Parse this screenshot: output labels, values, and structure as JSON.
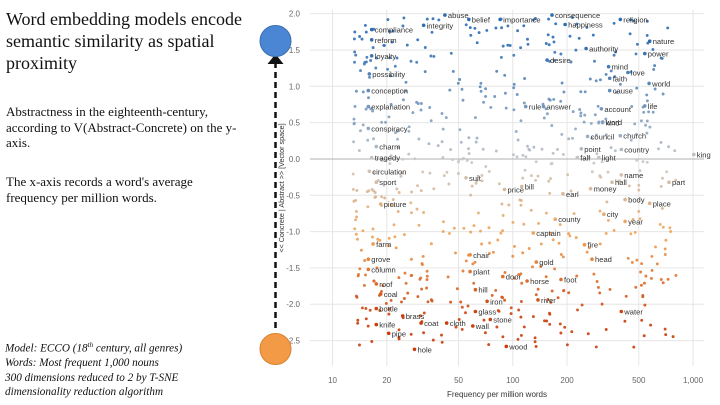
{
  "slide": {
    "title": "Word embedding models encode semantic similarity as spatial proximity",
    "description": [
      "Abstractness in the eighteenth-century, according to V(Abstract-Concrete) on the y-axis.",
      "The x-axis records a word's average frequency per million words."
    ],
    "notes": {
      "model_prefix": "Model: ECCO (18",
      "model_sup": "th",
      "model_suffix": " century, all genres)",
      "words": "Words: Most frequent 1,000 nouns",
      "dims": "300 dimensions reduced to 2 by T-SNE",
      "algo": "dimensionality reduction algorithm"
    }
  },
  "arrow": {
    "top_color": "#4a86d4",
    "bottom_color": "#f39a46",
    "line_color": "#111111"
  },
  "chart_data": {
    "type": "scatter",
    "xlabel": "Frequency per million words",
    "ylabel": "<< Concrete | Abstract >> [Vector space]",
    "xscale": "log",
    "xlim": [
      7.5,
      1150
    ],
    "ylim": [
      -2.85,
      2.05
    ],
    "xticks": [
      10,
      20,
      50,
      100,
      200,
      500,
      1000
    ],
    "xtick_labels": [
      "10",
      "20",
      "50",
      "100",
      "200",
      "500",
      "1,000"
    ],
    "yticks": [
      2.0,
      1.5,
      1.0,
      0.5,
      0.0,
      -0.5,
      -1.0,
      -1.5,
      -2.0,
      -2.5
    ],
    "ytick_labels": [
      "2.0",
      "1.5",
      "1.0",
      "0.5",
      "0.0",
      "-0.5",
      "-1.0",
      "-1.5",
      "-2.0",
      "-2.5"
    ],
    "grid": true,
    "color_scale": {
      "abstract": "#2f6db3",
      "neutral": "#c8c8c8",
      "concrete": "#c93d0a"
    },
    "labeled_points": [
      {
        "word": "abuse",
        "x": 42,
        "y": 1.98
      },
      {
        "word": "belief",
        "x": 57,
        "y": 1.92
      },
      {
        "word": "importance",
        "x": 85,
        "y": 1.92
      },
      {
        "word": "consequence",
        "x": 165,
        "y": 1.98
      },
      {
        "word": "religion",
        "x": 395,
        "y": 1.92
      },
      {
        "word": "happiness",
        "x": 195,
        "y": 1.85
      },
      {
        "word": "integrity",
        "x": 32,
        "y": 1.84
      },
      {
        "word": "compliance",
        "x": 16.5,
        "y": 1.78
      },
      {
        "word": "reform",
        "x": 16.5,
        "y": 1.64
      },
      {
        "word": "nature",
        "x": 575,
        "y": 1.62
      },
      {
        "word": "authority",
        "x": 255,
        "y": 1.52
      },
      {
        "word": "power",
        "x": 540,
        "y": 1.45
      },
      {
        "word": "loyalty",
        "x": 16.5,
        "y": 1.42
      },
      {
        "word": "desire",
        "x": 155,
        "y": 1.36
      },
      {
        "word": "mind",
        "x": 340,
        "y": 1.27
      },
      {
        "word": "love",
        "x": 435,
        "y": 1.19
      },
      {
        "word": "possibility",
        "x": 16.0,
        "y": 1.17
      },
      {
        "word": "faith",
        "x": 345,
        "y": 1.11
      },
      {
        "word": "world",
        "x": 570,
        "y": 1.04
      },
      {
        "word": "conception",
        "x": 15.8,
        "y": 0.94
      },
      {
        "word": "cause",
        "x": 345,
        "y": 0.94
      },
      {
        "word": "explanation",
        "x": 15.8,
        "y": 0.72
      },
      {
        "word": "life",
        "x": 540,
        "y": 0.73
      },
      {
        "word": "rule",
        "x": 118,
        "y": 0.72
      },
      {
        "word": "answer",
        "x": 148,
        "y": 0.72
      },
      {
        "word": "account",
        "x": 310,
        "y": 0.69
      },
      {
        "word": "conspiracy",
        "x": 15.8,
        "y": 0.42
      },
      {
        "word": "kind",
        "x": 315,
        "y": 0.5
      },
      {
        "word": "word",
        "x": 315,
        "y": 0.51
      },
      {
        "word": "council",
        "x": 260,
        "y": 0.31
      },
      {
        "word": "church",
        "x": 395,
        "y": 0.32
      },
      {
        "word": "charm",
        "x": 17.5,
        "y": 0.17
      },
      {
        "word": "point",
        "x": 240,
        "y": 0.14
      },
      {
        "word": "country",
        "x": 400,
        "y": 0.13
      },
      {
        "word": "tragedy",
        "x": 16.5,
        "y": 0.02
      },
      {
        "word": "fall",
        "x": 228,
        "y": 0.02
      },
      {
        "word": "light",
        "x": 300,
        "y": 0.02
      },
      {
        "word": "king",
        "x": 1010,
        "y": 0.06
      },
      {
        "word": "circulation",
        "x": 16.0,
        "y": -0.17
      },
      {
        "word": "name",
        "x": 400,
        "y": -0.22
      },
      {
        "word": "sport",
        "x": 17.5,
        "y": -0.32
      },
      {
        "word": "suit",
        "x": 55,
        "y": -0.26
      },
      {
        "word": "hall",
        "x": 355,
        "y": -0.32
      },
      {
        "word": "part",
        "x": 735,
        "y": -0.32
      },
      {
        "word": "money",
        "x": 270,
        "y": -0.41
      },
      {
        "word": "bill",
        "x": 112,
        "y": -0.38
      },
      {
        "word": "price",
        "x": 90,
        "y": -0.42
      },
      {
        "word": "earl",
        "x": 190,
        "y": -0.48
      },
      {
        "word": "body",
        "x": 420,
        "y": -0.56
      },
      {
        "word": "picture",
        "x": 18.5,
        "y": -0.62
      },
      {
        "word": "place",
        "x": 575,
        "y": -0.61
      },
      {
        "word": "city",
        "x": 320,
        "y": -0.76
      },
      {
        "word": "year",
        "x": 420,
        "y": -0.86
      },
      {
        "word": "county",
        "x": 172,
        "y": -0.83
      },
      {
        "word": "captain",
        "x": 130,
        "y": -1.02
      },
      {
        "word": "farm",
        "x": 16.8,
        "y": -1.17
      },
      {
        "word": "fire",
        "x": 250,
        "y": -1.18
      },
      {
        "word": "chair",
        "x": 58,
        "y": -1.32
      },
      {
        "word": "grove",
        "x": 15.8,
        "y": -1.38
      },
      {
        "word": "head",
        "x": 275,
        "y": -1.38
      },
      {
        "word": "gold",
        "x": 135,
        "y": -1.42
      },
      {
        "word": "column",
        "x": 15.8,
        "y": -1.52
      },
      {
        "word": "plant",
        "x": 58,
        "y": -1.55
      },
      {
        "word": "door",
        "x": 88,
        "y": -1.62
      },
      {
        "word": "horse",
        "x": 120,
        "y": -1.68
      },
      {
        "word": "foot",
        "x": 185,
        "y": -1.66
      },
      {
        "word": "roof",
        "x": 17.5,
        "y": -1.72
      },
      {
        "word": "hill",
        "x": 62,
        "y": -1.8
      },
      {
        "word": "coal",
        "x": 18.5,
        "y": -1.86
      },
      {
        "word": "river",
        "x": 138,
        "y": -1.94
      },
      {
        "word": "iron",
        "x": 72,
        "y": -1.96
      },
      {
        "word": "bottle",
        "x": 17.5,
        "y": -2.06
      },
      {
        "word": "water",
        "x": 400,
        "y": -2.1
      },
      {
        "word": "glass",
        "x": 62,
        "y": -2.1
      },
      {
        "word": "brass",
        "x": 24.5,
        "y": -2.16
      },
      {
        "word": "stone",
        "x": 75,
        "y": -2.21
      },
      {
        "word": "knife",
        "x": 17.5,
        "y": -2.28
      },
      {
        "word": "coat",
        "x": 31,
        "y": -2.26
      },
      {
        "word": "cloth",
        "x": 43,
        "y": -2.26
      },
      {
        "word": "wall",
        "x": 60,
        "y": -2.3
      },
      {
        "word": "pipe",
        "x": 20.5,
        "y": -2.4
      },
      {
        "word": "wood",
        "x": 92,
        "y": -2.58
      },
      {
        "word": "hole",
        "x": 28.5,
        "y": -2.62
      }
    ]
  }
}
